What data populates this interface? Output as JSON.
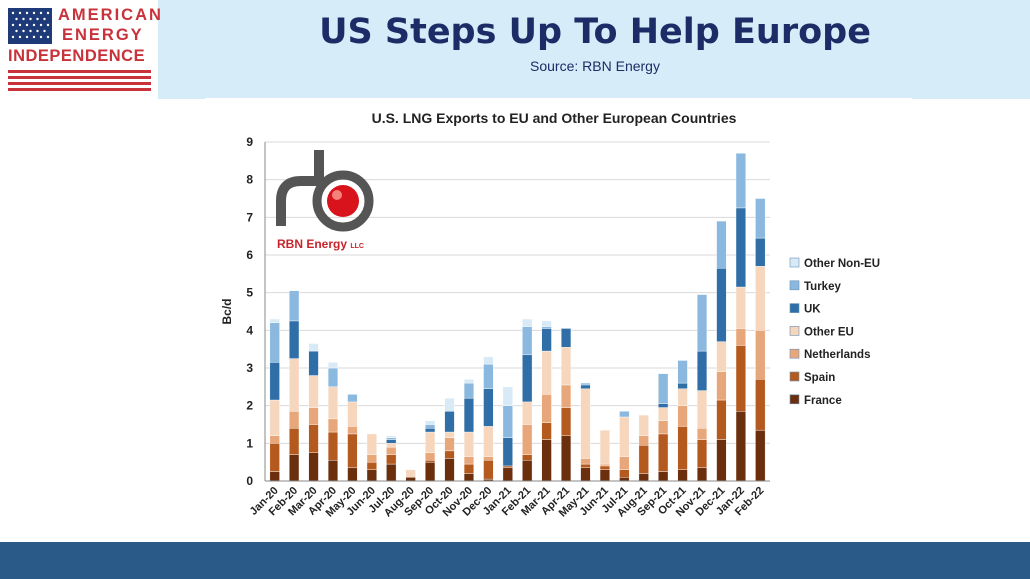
{
  "header": {
    "brand_line1": "AMERICAN",
    "brand_line2": "ENERGY",
    "brand_line3": "INDEPENDENCE",
    "title": "US Steps Up To Help Europe",
    "subtitle": "Source: RBN Energy"
  },
  "colors": {
    "header_band": "#d6ecf8",
    "title_navy": "#1c2c66",
    "brand_red": "#c8323a",
    "bottom_band": "#2a5a87"
  },
  "logo": {
    "company_name": "RBN Energy",
    "suffix": "LLC"
  },
  "chart_data": {
    "type": "bar",
    "stacked": true,
    "title": "U.S. LNG Exports to EU and Other European Countries",
    "ylabel": "Bc/d",
    "xlabel": "",
    "ylim": [
      0,
      9
    ],
    "yticks": [
      "0",
      "1",
      "2",
      "3",
      "4",
      "5",
      "6",
      "7",
      "8",
      "9"
    ],
    "grid": true,
    "legend_position": "right",
    "categories": [
      "Jan-20",
      "Feb-20",
      "Mar-20",
      "Apr-20",
      "May-20",
      "Jun-20",
      "Jul-20",
      "Aug-20",
      "Sep-20",
      "Oct-20",
      "Nov-20",
      "Dec-20",
      "Jan-21",
      "Feb-21",
      "Mar-21",
      "Apr-21",
      "May-21",
      "Jun-21",
      "Jul-21",
      "Aug-21",
      "Sep-21",
      "Oct-21",
      "Nov-21",
      "Dec-21",
      "Jan-22",
      "Feb-22"
    ],
    "series": [
      {
        "name": "France",
        "color": "#6b2f0e",
        "values": [
          0.25,
          0.7,
          0.75,
          0.55,
          0.35,
          0.3,
          0.45,
          0.1,
          0.5,
          0.6,
          0.2,
          0.05,
          0.35,
          0.55,
          1.1,
          1.2,
          0.35,
          0.3,
          0.1,
          0.2,
          0.25,
          0.3,
          0.35,
          1.1,
          1.85,
          1.35
        ]
      },
      {
        "name": "Spain",
        "color": "#b55a1f",
        "values": [
          0.75,
          0.7,
          0.75,
          0.75,
          0.9,
          0.2,
          0.25,
          0.0,
          0.05,
          0.2,
          0.25,
          0.5,
          0.05,
          0.15,
          0.45,
          0.75,
          0.1,
          0.1,
          0.2,
          0.75,
          1.0,
          1.15,
          0.75,
          1.05,
          1.75,
          1.35
        ]
      },
      {
        "name": "Netherlands",
        "color": "#e8a77a",
        "values": [
          0.2,
          0.45,
          0.45,
          0.35,
          0.2,
          0.2,
          0.2,
          0.0,
          0.2,
          0.35,
          0.2,
          0.1,
          0.0,
          0.8,
          0.75,
          0.6,
          0.15,
          0.05,
          0.35,
          0.25,
          0.35,
          0.55,
          0.3,
          0.75,
          0.45,
          1.3
        ]
      },
      {
        "name": "Other EU",
        "color": "#f6d6bd",
        "values": [
          0.95,
          1.4,
          0.85,
          0.85,
          0.65,
          0.55,
          0.1,
          0.2,
          0.55,
          0.15,
          0.65,
          0.8,
          0.0,
          0.6,
          1.15,
          1.0,
          1.85,
          0.9,
          1.05,
          0.55,
          0.35,
          0.45,
          1.0,
          0.8,
          1.1,
          1.7
        ]
      },
      {
        "name": "UK",
        "color": "#2f6ea6",
        "values": [
          1.0,
          1.0,
          0.65,
          0.0,
          0.0,
          0.0,
          0.1,
          0.0,
          0.1,
          0.55,
          0.9,
          1.0,
          0.75,
          1.25,
          0.6,
          0.5,
          0.1,
          0.0,
          0.0,
          0.0,
          0.1,
          0.15,
          1.05,
          1.95,
          2.1,
          0.75
        ]
      },
      {
        "name": "Turkey",
        "color": "#8ab8df",
        "values": [
          1.05,
          0.8,
          0.0,
          0.5,
          0.2,
          0.0,
          0.05,
          0.0,
          0.1,
          0.0,
          0.4,
          0.65,
          0.85,
          0.75,
          0.05,
          0.0,
          0.05,
          0.0,
          0.15,
          0.0,
          0.8,
          0.6,
          1.5,
          1.25,
          1.45,
          1.05
        ]
      },
      {
        "name": "Other Non-EU",
        "color": "#d9eaf7",
        "values": [
          0.1,
          0.0,
          0.2,
          0.15,
          0.0,
          0.0,
          0.05,
          0.0,
          0.1,
          0.35,
          0.1,
          0.2,
          0.5,
          0.2,
          0.15,
          0.0,
          0.0,
          0.0,
          0.0,
          0.0,
          0.0,
          0.0,
          0.0,
          0.0,
          0.0,
          0.0
        ]
      }
    ]
  }
}
